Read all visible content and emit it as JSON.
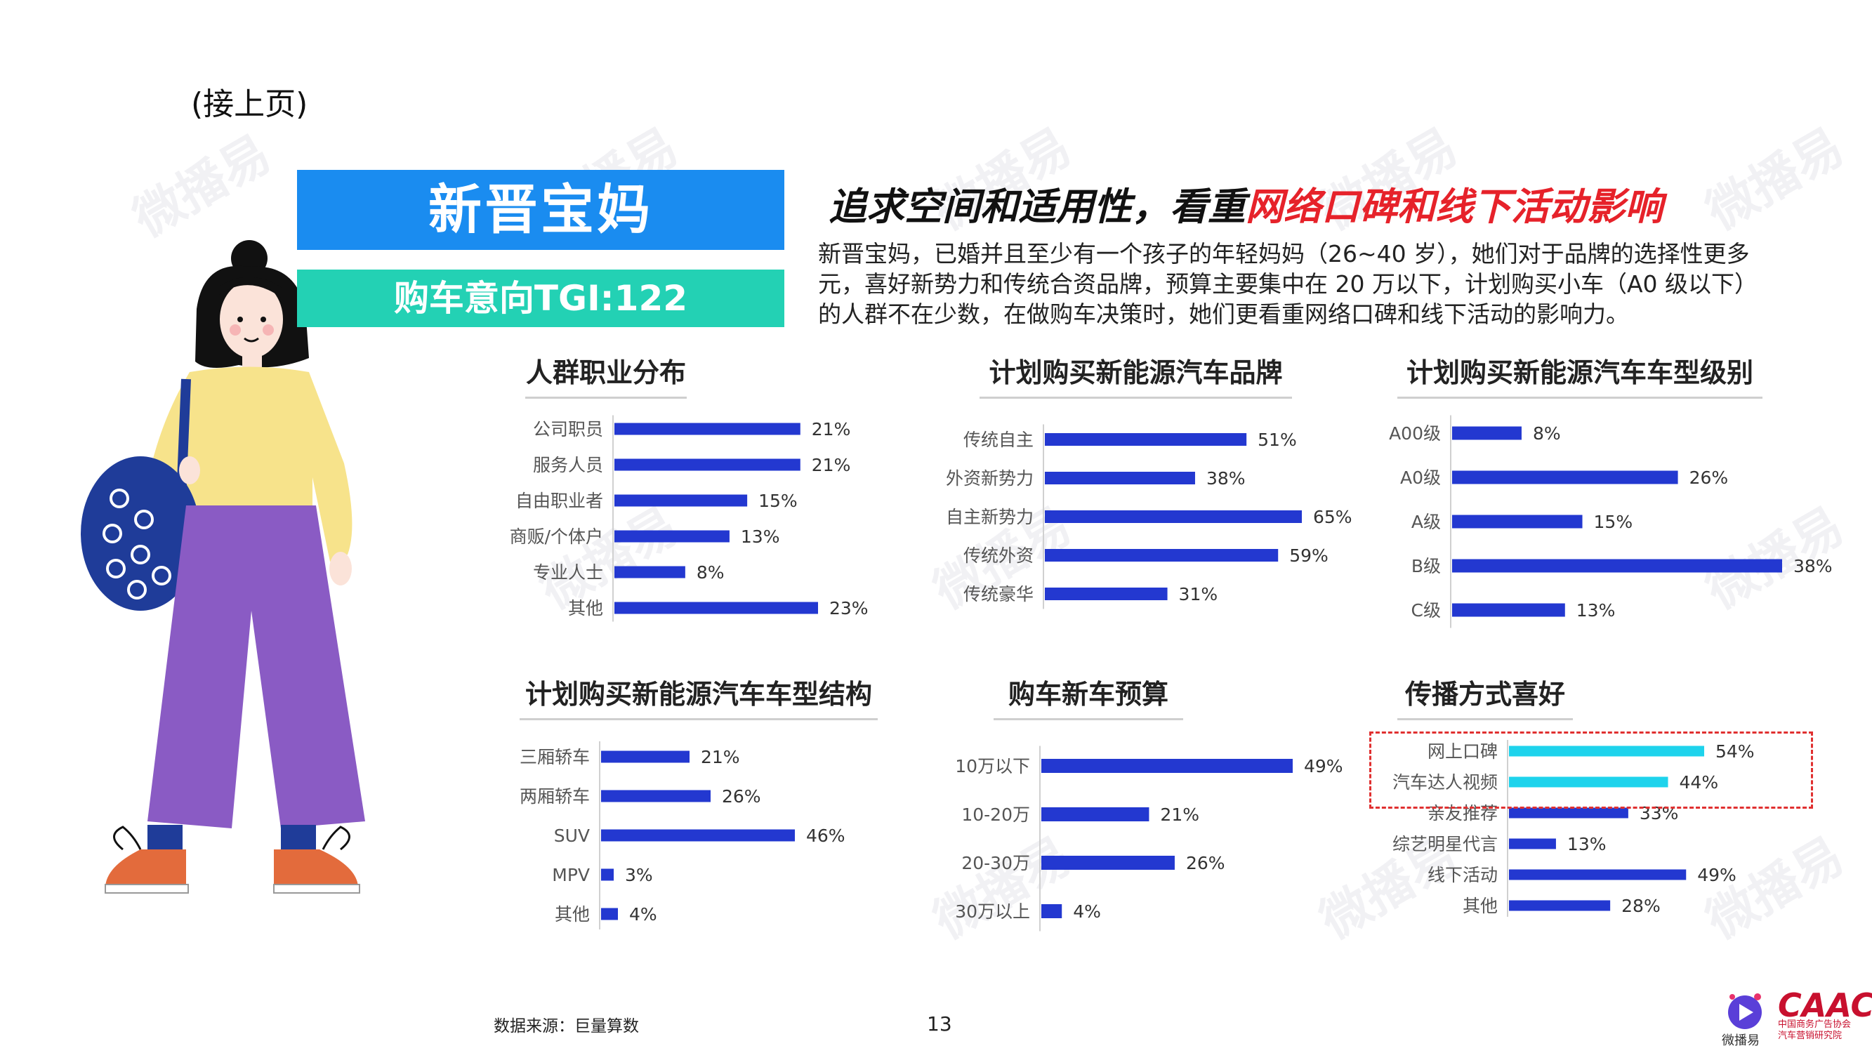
{
  "page": {
    "continued": "(接上页)",
    "persona_name": "新晋宝妈",
    "tgi": "购车意向TGI:122",
    "headline_part1": "追求空间和适用性，看重",
    "headline_part2": "网络口碑和线下活动影响",
    "description": "新晋宝妈，已婚并且至少有一个孩子的年轻妈妈（26~40 岁），她们对于品牌的选择性更多元，喜好新势力和传统合资品牌，预算主要集中在 20 万以下，计划购买小车（A0 级以下）的人群不在少数，在做购车决策时，她们更看重网络口碑和线下活动的影响力。",
    "source": "数据来源：巨量算数",
    "page_number": "13",
    "watermark": "微播易",
    "logo_weiboyi": "微播易",
    "logo_caac": "CAAC",
    "logo_caac_sub": "中国商务广告协会 汽车营销研究院"
  },
  "colors": {
    "bar": "#2338d0",
    "bar_highlight": "#1ed3ec",
    "title_box": "#1a8cf0",
    "tgi_box": "#23d1b4",
    "headline_highlight": "#e6222a",
    "highlight_frame": "#e03030"
  },
  "chart_data": [
    {
      "id": "occupation",
      "type": "bar",
      "orientation": "horizontal",
      "title": "人群职业分布",
      "categories": [
        "公司职员",
        "服务人员",
        "自由职业者",
        "商贩/个体户",
        "专业人士",
        "其他"
      ],
      "values": [
        21,
        21,
        15,
        13,
        8,
        23
      ],
      "labels": [
        "21%",
        "21%",
        "15%",
        "13%",
        "8%",
        "23%"
      ],
      "unit": "%",
      "xlim": [
        0,
        23
      ]
    },
    {
      "id": "nev_brand",
      "type": "bar",
      "orientation": "horizontal",
      "title": "计划购买新能源汽车品牌",
      "categories": [
        "传统自主",
        "外资新势力",
        "自主新势力",
        "传统外资",
        "传统豪华"
      ],
      "values": [
        51,
        38,
        65,
        59,
        31
      ],
      "labels": [
        "51%",
        "38%",
        "65%",
        "59%",
        "31%"
      ],
      "unit": "%",
      "xlim": [
        0,
        65
      ]
    },
    {
      "id": "nev_class",
      "type": "bar",
      "orientation": "horizontal",
      "title": "计划购买新能源汽车车型级别",
      "categories": [
        "A00级",
        "A0级",
        "A级",
        "B级",
        "C级"
      ],
      "values": [
        8,
        26,
        15,
        38,
        13
      ],
      "labels": [
        "8%",
        "26%",
        "15%",
        "38%",
        "13%"
      ],
      "unit": "%",
      "xlim": [
        0,
        38
      ]
    },
    {
      "id": "nev_body",
      "type": "bar",
      "orientation": "horizontal",
      "title": "计划购买新能源汽车车型结构",
      "categories": [
        "三厢轿车",
        "两厢轿车",
        "SUV",
        "MPV",
        "其他"
      ],
      "values": [
        21,
        26,
        46,
        3,
        4
      ],
      "labels": [
        "21%",
        "26%",
        "46%",
        "3%",
        "4%"
      ],
      "unit": "%",
      "xlim": [
        0,
        46
      ]
    },
    {
      "id": "budget",
      "type": "bar",
      "orientation": "horizontal",
      "title": "购车新车预算",
      "categories": [
        "10万以下",
        "10-20万",
        "20-30万",
        "30万以上"
      ],
      "values": [
        49,
        21,
        26,
        4
      ],
      "labels": [
        "49%",
        "21%",
        "26%",
        "4%"
      ],
      "unit": "%",
      "xlim": [
        0,
        49
      ]
    },
    {
      "id": "channel",
      "type": "bar",
      "orientation": "horizontal",
      "title": "传播方式喜好",
      "categories": [
        "网上口碑",
        "汽车达人视频",
        "亲友推荐",
        "综艺明星代言",
        "线下活动",
        "其他"
      ],
      "values": [
        54,
        44,
        33,
        13,
        49,
        28
      ],
      "labels": [
        "54%",
        "44%",
        "33%",
        "13%",
        "49%",
        "28%"
      ],
      "highlighted": [
        "网上口碑",
        "汽车达人视频"
      ],
      "unit": "%",
      "xlim": [
        0,
        54
      ]
    }
  ]
}
